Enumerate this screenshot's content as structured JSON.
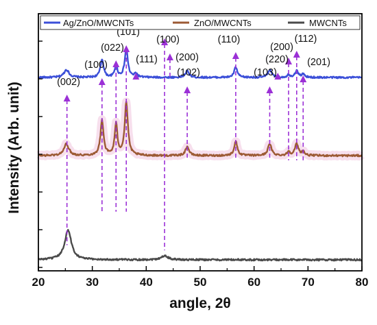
{
  "chart_data": {
    "type": "line",
    "title": "",
    "xlabel": "angle, 2θ",
    "ylabel": "Intensity (Arb. unit)",
    "xlim": [
      20,
      80
    ],
    "xticks": [
      "20",
      "30",
      "40",
      "50",
      "60",
      "70",
      "80"
    ],
    "y_tick_labels_shown": false,
    "grid": false,
    "legend_position": "top",
    "series": [
      {
        "name": "Ag/ZnO/MWCNTs",
        "color": "#3b4fd8",
        "baseline": 0.752,
        "peaks": [
          {
            "x": 25.2,
            "h": 0.03,
            "w": 0.55
          },
          {
            "x": 31.8,
            "h": 0.07,
            "w": 0.35
          },
          {
            "x": 34.4,
            "h": 0.045,
            "w": 0.3
          },
          {
            "x": 36.3,
            "h": 0.11,
            "w": 0.35
          },
          {
            "x": 38.1,
            "h": 0.015,
            "w": 0.3
          },
          {
            "x": 47.6,
            "h": 0.025,
            "w": 0.4
          },
          {
            "x": 56.6,
            "h": 0.04,
            "w": 0.35
          },
          {
            "x": 62.9,
            "h": 0.03,
            "w": 0.4
          },
          {
            "x": 66.4,
            "h": 0.01,
            "w": 0.3
          },
          {
            "x": 67.9,
            "h": 0.025,
            "w": 0.4
          },
          {
            "x": 69.1,
            "h": 0.012,
            "w": 0.3
          }
        ]
      },
      {
        "name": "ZnO/MWCNTs",
        "color": "#9c5a34",
        "band_color": "#f6d9ea",
        "baseline": 0.448,
        "peaks": [
          {
            "x": 25.2,
            "h": 0.045,
            "w": 0.55
          },
          {
            "x": 31.8,
            "h": 0.135,
            "w": 0.35
          },
          {
            "x": 34.4,
            "h": 0.12,
            "w": 0.3
          },
          {
            "x": 36.3,
            "h": 0.205,
            "w": 0.35
          },
          {
            "x": 47.6,
            "h": 0.035,
            "w": 0.4
          },
          {
            "x": 56.6,
            "h": 0.055,
            "w": 0.35
          },
          {
            "x": 62.9,
            "h": 0.045,
            "w": 0.4
          },
          {
            "x": 66.4,
            "h": 0.015,
            "w": 0.3
          },
          {
            "x": 67.9,
            "h": 0.045,
            "w": 0.4
          },
          {
            "x": 69.1,
            "h": 0.015,
            "w": 0.3
          }
        ]
      },
      {
        "name": "MWCNTs",
        "color": "#4a4a4a",
        "baseline": 0.043,
        "peaks": [
          {
            "x": 25.5,
            "h": 0.115,
            "w": 0.75
          },
          {
            "x": 43.4,
            "h": 0.015,
            "w": 0.8
          }
        ]
      }
    ],
    "reference_color": "#9b30d6",
    "reflections": [
      {
        "label": "(002)",
        "x": 25.3,
        "end": 0.1
      },
      {
        "label": "(100)",
        "x": 31.8,
        "end": 0.23
      },
      {
        "label": "(022)",
        "x": 34.4,
        "end": 0.23
      },
      {
        "label": "(101)",
        "x": 36.3,
        "end": 0.23
      },
      {
        "label": "(111)",
        "x": 38.1,
        "end": 0.75
      },
      {
        "label": "(100)",
        "x": 43.4,
        "end": 0.08
      },
      {
        "label": "(200)",
        "x": 44.4,
        "end": 0.75
      },
      {
        "label": "(102)",
        "x": 47.6,
        "end": 0.43
      },
      {
        "label": "(110)",
        "x": 56.6,
        "end": 0.43
      },
      {
        "label": "(103)",
        "x": 62.9,
        "end": 0.43
      },
      {
        "label": "(220)",
        "x": 64.4,
        "end": 0.75
      },
      {
        "label": "(200)",
        "x": 66.4,
        "end": 0.43
      },
      {
        "label": "(112)",
        "x": 67.9,
        "end": 0.43
      },
      {
        "label": "(201)",
        "x": 69.1,
        "end": 0.43
      }
    ]
  }
}
